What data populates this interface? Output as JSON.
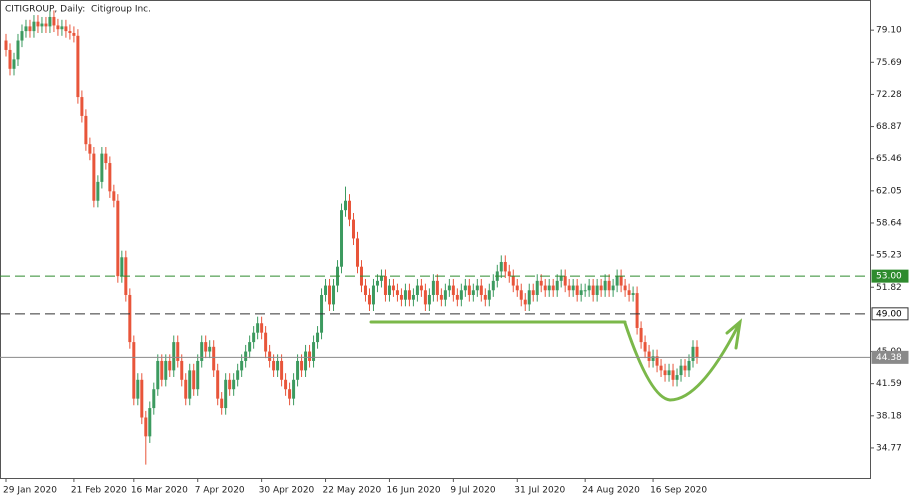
{
  "chart_data": {
    "type": "candlestick",
    "title": "CITIGROUP, Daily:  Citigroup Inc.",
    "up_color": "#3c9a5f",
    "down_color": "#e8553a",
    "ylim": [
      31.58,
      82.3
    ],
    "yticks": [
      {
        "value": 79.1,
        "label": "79.10"
      },
      {
        "value": 75.69,
        "label": "75.69"
      },
      {
        "value": 72.28,
        "label": "72.28"
      },
      {
        "value": 68.87,
        "label": "68.87"
      },
      {
        "value": 65.46,
        "label": "65.46"
      },
      {
        "value": 62.05,
        "label": "62.05"
      },
      {
        "value": 58.64,
        "label": "58.64"
      },
      {
        "value": 55.23,
        "label": "55.23"
      },
      {
        "value": 51.82,
        "label": "51.82"
      },
      {
        "value": 45,
        "label": "45.00"
      },
      {
        "value": 41.59,
        "label": "41.59"
      },
      {
        "value": 38.18,
        "label": "38.18"
      },
      {
        "value": 34.77,
        "label": "34.77"
      }
    ],
    "levels": [
      {
        "value": 53,
        "label": "53.00",
        "color": "#2e8b2e",
        "style": "dashed",
        "label_fill": "#2e8b2e",
        "label_text": "#ffffff"
      },
      {
        "value": 49,
        "label": "49.00",
        "color": "#333333",
        "style": "dashed",
        "label_fill": "#ffffff",
        "label_text": "#000000"
      },
      {
        "value": 44.38,
        "label": "44.38",
        "color": "#8a8a8a",
        "style": "solid",
        "label_fill": "#8a8a8a",
        "label_text": "#ffffff"
      }
    ],
    "categories": [
      "29 Jan 2020",
      null,
      null,
      null,
      null,
      null,
      null,
      null,
      null,
      null,
      null,
      null,
      null,
      null,
      null,
      null,
      null,
      "21 Feb 2020",
      null,
      null,
      null,
      null,
      null,
      null,
      null,
      null,
      null,
      null,
      null,
      null,
      null,
      null,
      "16 Mar 2020",
      null,
      null,
      null,
      null,
      null,
      null,
      null,
      null,
      null,
      null,
      null,
      null,
      null,
      null,
      null,
      "7 Apr 2020",
      null,
      null,
      null,
      null,
      null,
      null,
      null,
      null,
      null,
      null,
      null,
      null,
      null,
      null,
      null,
      "30 Apr 2020",
      null,
      null,
      null,
      null,
      null,
      null,
      null,
      null,
      null,
      null,
      null,
      null,
      null,
      null,
      null,
      "22 May 2020",
      null,
      null,
      null,
      null,
      null,
      null,
      null,
      null,
      null,
      null,
      null,
      null,
      null,
      null,
      null,
      "16 Jun 2020",
      null,
      null,
      null,
      null,
      null,
      null,
      null,
      null,
      null,
      null,
      null,
      null,
      null,
      null,
      null,
      "9 Jul 2020",
      null,
      null,
      null,
      null,
      null,
      null,
      null,
      null,
      null,
      null,
      null,
      null,
      null,
      null,
      null,
      "31 Jul 2020",
      null,
      null,
      null,
      null,
      null,
      null,
      null,
      null,
      null,
      null,
      null,
      null,
      null,
      null,
      null,
      null,
      "24 Aug 2020",
      null,
      null,
      null,
      null,
      null,
      null,
      null,
      null,
      null,
      null,
      null,
      null,
      null,
      null,
      null,
      null,
      "16 Sep 2020",
      null,
      null,
      null,
      null,
      null,
      null,
      null,
      null,
      null,
      null,
      null
    ],
    "candles": [
      [
        78,
        78.7,
        76.3,
        77
      ],
      [
        77,
        77.7,
        74.3,
        75
      ],
      [
        75,
        76.7,
        74.3,
        76
      ],
      [
        76,
        78.7,
        75.3,
        78
      ],
      [
        78,
        79.7,
        77.3,
        79
      ],
      [
        79,
        80.2,
        78.3,
        79.5
      ],
      [
        79.5,
        80.2,
        78.3,
        79
      ],
      [
        79,
        80.7,
        78.3,
        80
      ],
      [
        80,
        80.7,
        78.8,
        79.5
      ],
      [
        79.5,
        80.5,
        78.8,
        79.8
      ],
      [
        79.8,
        80.5,
        78.8,
        79.5
      ],
      [
        79.5,
        81.2,
        78.8,
        80.5
      ],
      [
        80.5,
        81.2,
        78.9,
        79.6
      ],
      [
        79.6,
        80.3,
        78.5,
        79.2
      ],
      [
        79.2,
        80.2,
        78.5,
        79.5
      ],
      [
        79.5,
        80.2,
        78.3,
        79
      ],
      [
        79,
        79.7,
        78.1,
        78.8
      ],
      [
        78.8,
        79.5,
        77.8,
        78.5
      ],
      [
        78.5,
        79.2,
        71.3,
        72
      ],
      [
        72,
        72.7,
        69.3,
        70
      ],
      [
        70,
        70.7,
        66.3,
        67
      ],
      [
        67,
        67.7,
        65.3,
        66
      ],
      [
        66,
        66.7,
        60.3,
        61
      ],
      [
        61,
        63.7,
        60.3,
        63
      ],
      [
        63,
        66.7,
        62.3,
        66
      ],
      [
        66,
        66.7,
        64.3,
        65
      ],
      [
        65,
        65.7,
        61.3,
        62
      ],
      [
        62,
        62.7,
        60.3,
        61
      ],
      [
        61,
        61.7,
        52.3,
        53
      ],
      [
        53,
        55.7,
        52.3,
        55
      ],
      [
        55,
        55.7,
        50.3,
        51
      ],
      [
        51,
        51.7,
        45.3,
        46
      ],
      [
        46,
        46.7,
        39.3,
        40
      ],
      [
        40,
        42.7,
        39.3,
        42
      ],
      [
        42,
        42.7,
        37.3,
        38
      ],
      [
        38,
        38.7,
        33,
        36
      ],
      [
        36,
        39.7,
        35.3,
        39
      ],
      [
        39,
        41.7,
        38.3,
        41
      ],
      [
        41,
        44.7,
        40.3,
        44
      ],
      [
        44,
        44.7,
        41.3,
        42
      ],
      [
        42,
        44.7,
        41.3,
        44
      ],
      [
        44,
        44.7,
        42.3,
        43
      ],
      [
        43,
        46.7,
        42.3,
        46
      ],
      [
        46,
        46.7,
        43.3,
        44
      ],
      [
        44,
        44.7,
        41.3,
        42
      ],
      [
        42,
        42.7,
        39.3,
        40
      ],
      [
        40,
        43.7,
        39.3,
        43
      ],
      [
        43,
        43.7,
        40.3,
        41
      ],
      [
        41,
        44.7,
        40.3,
        44
      ],
      [
        44,
        46.7,
        43.3,
        46
      ],
      [
        46,
        46.7,
        44.3,
        45
      ],
      [
        45,
        46.2,
        44.3,
        45.5
      ],
      [
        45.5,
        46.2,
        42.3,
        43
      ],
      [
        43,
        43.7,
        39.3,
        40
      ],
      [
        40,
        40.7,
        38.3,
        39
      ],
      [
        39,
        42.7,
        38.3,
        42
      ],
      [
        42,
        42.7,
        40.3,
        41
      ],
      [
        41,
        42.7,
        40.3,
        42
      ],
      [
        42,
        43.7,
        41.3,
        43
      ],
      [
        43,
        44.7,
        42.3,
        44
      ],
      [
        44,
        45.7,
        43.3,
        45
      ],
      [
        45,
        46.7,
        44.3,
        46
      ],
      [
        46,
        47.7,
        45.3,
        47
      ],
      [
        47,
        48.7,
        46.3,
        48
      ],
      [
        48,
        48.7,
        46.3,
        47
      ],
      [
        47,
        47.7,
        44.3,
        45
      ],
      [
        45,
        45.7,
        43.3,
        44
      ],
      [
        44,
        44.7,
        42.3,
        43
      ],
      [
        43,
        44.7,
        42.3,
        44
      ],
      [
        44,
        44.7,
        41.3,
        42
      ],
      [
        42,
        42.7,
        40.3,
        41
      ],
      [
        41,
        41.7,
        39.3,
        40
      ],
      [
        40,
        42.7,
        39.3,
        42
      ],
      [
        42,
        44.7,
        41.3,
        44
      ],
      [
        44,
        44.7,
        42.3,
        43
      ],
      [
        43,
        45.7,
        42.3,
        45
      ],
      [
        45,
        45.7,
        43.3,
        44
      ],
      [
        44,
        46.7,
        43.3,
        46
      ],
      [
        46,
        47.7,
        45.3,
        47
      ],
      [
        47,
        51.7,
        46.3,
        51
      ],
      [
        51,
        52.7,
        50.3,
        52
      ],
      [
        52,
        52.7,
        49.3,
        50
      ],
      [
        50,
        52.7,
        49.3,
        52
      ],
      [
        52,
        54.7,
        51.3,
        54
      ],
      [
        54,
        60.7,
        53.3,
        60
      ],
      [
        60,
        62.5,
        59.3,
        61
      ],
      [
        61,
        61.7,
        58.3,
        59
      ],
      [
        59,
        59.7,
        56.3,
        57
      ],
      [
        57,
        57.7,
        53.3,
        54
      ],
      [
        54,
        54.7,
        51.3,
        52
      ],
      [
        52,
        52.7,
        50.3,
        51
      ],
      [
        51,
        51.7,
        49.3,
        50
      ],
      [
        50,
        52.7,
        49.3,
        52
      ],
      [
        52,
        53.2,
        51.3,
        52.5
      ],
      [
        52.5,
        53.7,
        51.8,
        53
      ],
      [
        53,
        53.7,
        50.3,
        51
      ],
      [
        51,
        52.7,
        50.3,
        52
      ],
      [
        52,
        52.7,
        50.8,
        51.5
      ],
      [
        51.5,
        52.2,
        50.3,
        51
      ],
      [
        51,
        51.7,
        49.8,
        50.5
      ],
      [
        50.5,
        52.2,
        49.8,
        51.5
      ],
      [
        51.5,
        52.2,
        49.8,
        50.5
      ],
      [
        50.5,
        51.7,
        49.8,
        51
      ],
      [
        51,
        52.7,
        50.3,
        52
      ],
      [
        52,
        52.7,
        50.8,
        51.5
      ],
      [
        51.5,
        52.2,
        49.3,
        50
      ],
      [
        50,
        51.7,
        49.3,
        51
      ],
      [
        51,
        53.2,
        50.3,
        52.5
      ],
      [
        52.5,
        53.2,
        50.3,
        51
      ],
      [
        51,
        51.7,
        49.8,
        50.5
      ],
      [
        50.5,
        52.2,
        49.8,
        51.5
      ],
      [
        51.5,
        52.7,
        50.8,
        52
      ],
      [
        52,
        52.7,
        50.3,
        51
      ],
      [
        51,
        51.7,
        49.8,
        50.5
      ],
      [
        50.5,
        52.2,
        49.8,
        51.5
      ],
      [
        51.5,
        52.7,
        50.8,
        52
      ],
      [
        52,
        52.7,
        50.3,
        51
      ],
      [
        51,
        52.2,
        50.3,
        51.5
      ],
      [
        51.5,
        52.7,
        50.8,
        52
      ],
      [
        52,
        52.7,
        50.3,
        51
      ],
      [
        51,
        51.7,
        49.8,
        50.5
      ],
      [
        50.5,
        52.2,
        49.8,
        51.5
      ],
      [
        51.5,
        53.2,
        50.8,
        52.5
      ],
      [
        52.5,
        54.2,
        51.8,
        53.5
      ],
      [
        53.5,
        55.2,
        52.8,
        54.5
      ],
      [
        54.5,
        55.2,
        52.8,
        53.5
      ],
      [
        53.5,
        54.2,
        52.3,
        53
      ],
      [
        53,
        53.7,
        51.3,
        52
      ],
      [
        52,
        52.7,
        50.8,
        51.5
      ],
      [
        51.5,
        52.2,
        49.8,
        50.5
      ],
      [
        50.5,
        51.2,
        49.3,
        50
      ],
      [
        50,
        52.2,
        49.3,
        51.5
      ],
      [
        51.5,
        52.2,
        50.3,
        51
      ],
      [
        51,
        53.2,
        50.3,
        52.5
      ],
      [
        52.5,
        53.2,
        51.3,
        52
      ],
      [
        52,
        52.7,
        50.8,
        51.5
      ],
      [
        51.5,
        52.7,
        50.8,
        52
      ],
      [
        52,
        52.7,
        50.8,
        51.5
      ],
      [
        51.5,
        53.2,
        50.8,
        52.5
      ],
      [
        52.5,
        53.7,
        51.8,
        53
      ],
      [
        53,
        53.7,
        51.3,
        52
      ],
      [
        52,
        52.7,
        50.8,
        51.5
      ],
      [
        51.5,
        52.7,
        50.8,
        52
      ],
      [
        52,
        52.7,
        50.3,
        51
      ],
      [
        51,
        52.2,
        50.3,
        51.5
      ],
      [
        51.5,
        52.2,
        50.8,
        51.5
      ],
      [
        51.5,
        52.7,
        50.8,
        52
      ],
      [
        52,
        52.7,
        50.3,
        51
      ],
      [
        51,
        52.7,
        50.3,
        52
      ],
      [
        52,
        52.7,
        50.8,
        51.5
      ],
      [
        51.5,
        53.2,
        50.8,
        52.5
      ],
      [
        52.5,
        53.2,
        50.8,
        51.5
      ],
      [
        51.5,
        52.7,
        50.8,
        52
      ],
      [
        52,
        53.7,
        51.3,
        53
      ],
      [
        53,
        53.7,
        51.3,
        52
      ],
      [
        52,
        52.7,
        50.8,
        51.5
      ],
      [
        51.5,
        52.2,
        50.3,
        51
      ],
      [
        51,
        51.9,
        50.3,
        51.2
      ],
      [
        51.2,
        51.9,
        46.8,
        47.5
      ],
      [
        47.5,
        48.2,
        45.3,
        46
      ],
      [
        46,
        46.7,
        44.3,
        45
      ],
      [
        45,
        45.7,
        43.3,
        44
      ],
      [
        44,
        45.2,
        43.3,
        44.5
      ],
      [
        44.5,
        45.2,
        42.8,
        43.5
      ],
      [
        43.5,
        44.2,
        42.3,
        43
      ],
      [
        43,
        43.7,
        41.8,
        42.5
      ],
      [
        42.5,
        43.7,
        41.8,
        43
      ],
      [
        43,
        43.7,
        41.3,
        42
      ],
      [
        42,
        43.2,
        41.3,
        42.5
      ],
      [
        42.5,
        44.2,
        41.8,
        43.5
      ],
      [
        43.5,
        44.2,
        42.3,
        43
      ],
      [
        43,
        44.7,
        42.3,
        44
      ],
      [
        44,
        46.2,
        43.3,
        45.5
      ],
      [
        45.5,
        46.2,
        43.7,
        44.4
      ]
    ]
  }
}
